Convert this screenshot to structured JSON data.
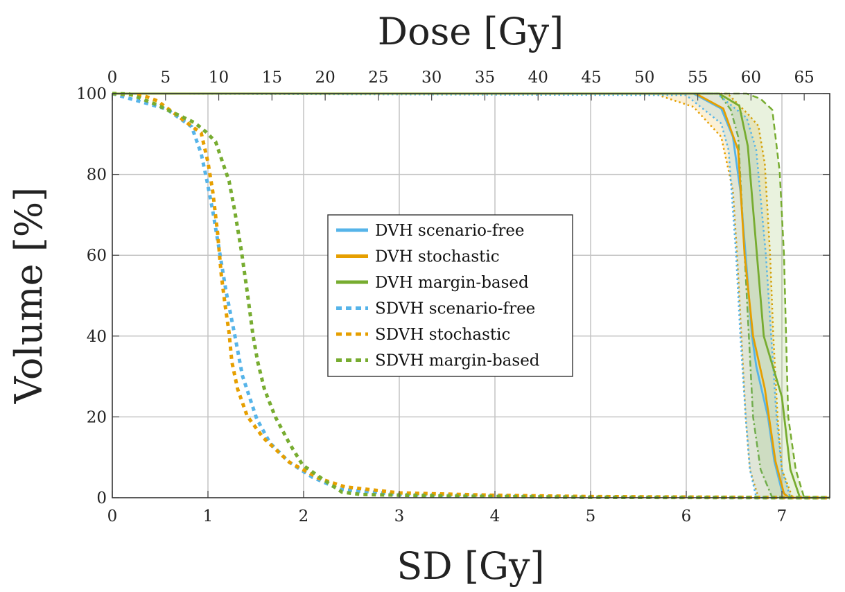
{
  "chart_data": {
    "type": "line",
    "top_axis_label": "Dose [Gy]",
    "xlabel": "SD [Gy]",
    "ylabel": "Volume [%]",
    "xlim": [
      0,
      7.5
    ],
    "top_xlim": [
      0,
      67.4
    ],
    "ylim": [
      0,
      100
    ],
    "x_ticks": [
      "0",
      "1",
      "2",
      "3",
      "4",
      "5",
      "6",
      "7"
    ],
    "top_ticks": [
      "0",
      "5",
      "10",
      "15",
      "20",
      "25",
      "30",
      "35",
      "40",
      "45",
      "50",
      "55",
      "60",
      "65"
    ],
    "y_ticks": [
      "0",
      "20",
      "40",
      "60",
      "80",
      "100"
    ],
    "grid": true,
    "legend_placement": "center",
    "colors": {
      "scenario_free": "#56B4E9",
      "stochastic": "#E69F00",
      "margin_based": "#77AC30"
    },
    "series": [
      {
        "name": "DVH scenario-free",
        "axis": "dose",
        "style": "solid",
        "color": "#56B4E9",
        "points": [
          [
            0,
            100
          ],
          [
            54.6,
            100
          ],
          [
            57.2,
            96.3
          ],
          [
            58.3,
            89.3
          ],
          [
            59.0,
            76
          ],
          [
            59.5,
            60
          ],
          [
            60.1,
            40
          ],
          [
            60.5,
            32.5
          ],
          [
            61.6,
            20
          ],
          [
            62.2,
            9
          ],
          [
            62.9,
            1.7
          ],
          [
            63.5,
            0
          ],
          [
            67.4,
            0
          ]
        ]
      },
      {
        "name": "DVH stochastic",
        "axis": "dose",
        "style": "solid",
        "color": "#E69F00",
        "points": [
          [
            0,
            100
          ],
          [
            54.8,
            100
          ],
          [
            57.4,
            96.3
          ],
          [
            58.8,
            86
          ],
          [
            59.4,
            60
          ],
          [
            60.2,
            40
          ],
          [
            61.3,
            27
          ],
          [
            62.3,
            9
          ],
          [
            63.1,
            1
          ],
          [
            63.6,
            0
          ],
          [
            67.4,
            0
          ]
        ]
      },
      {
        "name": "DVH margin-based",
        "axis": "dose",
        "style": "solid",
        "color": "#77AC30",
        "points": [
          [
            0,
            100
          ],
          [
            57.0,
            100
          ],
          [
            58.9,
            97
          ],
          [
            59.7,
            87
          ],
          [
            61.2,
            40
          ],
          [
            62.9,
            25
          ],
          [
            63.7,
            7
          ],
          [
            64.6,
            0
          ],
          [
            67.4,
            0
          ]
        ]
      },
      {
        "name": "SDVH scenario-free",
        "axis": "sd",
        "style": "dotted",
        "color": "#56B4E9",
        "points": [
          [
            0,
            100
          ],
          [
            0.565,
            96.2
          ],
          [
            0.83,
            91.8
          ],
          [
            0.93,
            85.1
          ],
          [
            0.99,
            78.4
          ],
          [
            1.05,
            71
          ],
          [
            1.12,
            61
          ],
          [
            1.19,
            51
          ],
          [
            1.28,
            40.3
          ],
          [
            1.36,
            30.2
          ],
          [
            1.51,
            19.5
          ],
          [
            1.65,
            13.5
          ],
          [
            1.85,
            8.8
          ],
          [
            2.09,
            5.1
          ],
          [
            2.38,
            2.1
          ],
          [
            3,
            0.8
          ],
          [
            4,
            0.5
          ],
          [
            5,
            0.2
          ],
          [
            6,
            0.1
          ],
          [
            7.5,
            0
          ]
        ]
      },
      {
        "name": "SDVH stochastic",
        "axis": "sd",
        "style": "dotted",
        "color": "#E69F00",
        "points": [
          [
            0,
            100
          ],
          [
            0.33,
            99.5
          ],
          [
            0.47,
            98.2
          ],
          [
            0.93,
            90.2
          ],
          [
            1.0,
            83
          ],
          [
            1.05,
            75.8
          ],
          [
            1.1,
            65.7
          ],
          [
            1.14,
            55
          ],
          [
            1.18,
            47.6
          ],
          [
            1.22,
            40.9
          ],
          [
            1.25,
            33.6
          ],
          [
            1.31,
            26.9
          ],
          [
            1.41,
            20.2
          ],
          [
            1.58,
            14.8
          ],
          [
            1.85,
            8.8
          ],
          [
            2.16,
            4.8
          ],
          [
            2.43,
            2.7
          ],
          [
            3,
            1.2
          ],
          [
            4,
            0.6
          ],
          [
            5,
            0.3
          ],
          [
            6.5,
            0.1
          ],
          [
            7.5,
            0
          ]
        ]
      },
      {
        "name": "SDVH margin-based",
        "axis": "sd",
        "style": "dotted",
        "color": "#77AC30",
        "points": [
          [
            0,
            100
          ],
          [
            0.18,
            99.9
          ],
          [
            0.44,
            97.5
          ],
          [
            0.86,
            92.8
          ],
          [
            0.98,
            90.5
          ],
          [
            1.08,
            88.1
          ],
          [
            1.17,
            81.8
          ],
          [
            1.22,
            78.4
          ],
          [
            1.28,
            71
          ],
          [
            1.35,
            61
          ],
          [
            1.41,
            51
          ],
          [
            1.47,
            40.3
          ],
          [
            1.52,
            33.6
          ],
          [
            1.59,
            26.9
          ],
          [
            1.7,
            20.2
          ],
          [
            1.85,
            13.5
          ],
          [
            1.99,
            8.1
          ],
          [
            2.23,
            4.1
          ],
          [
            2.4,
            1.4
          ],
          [
            2.6,
            0.8
          ],
          [
            3.5,
            0.4
          ],
          [
            5,
            0.1
          ],
          [
            7.5,
            0
          ]
        ]
      }
    ],
    "bands": [
      {
        "color": "#E69F00",
        "axis": "dose",
        "lower": {
          "style": "dotted",
          "points": [
            [
              0,
              100
            ],
            [
              46.8,
              100
            ],
            [
              51.3,
              99.6
            ],
            [
              54.6,
              96.7
            ],
            [
              57.2,
              89.3
            ],
            [
              58.3,
              76
            ],
            [
              58.7,
              60
            ],
            [
              59.1,
              40
            ],
            [
              59.5,
              20
            ],
            [
              59.9,
              7
            ],
            [
              60.7,
              0
            ],
            [
              67.4,
              0
            ]
          ]
        },
        "upper": {
          "style": "dotted",
          "points": [
            [
              0,
              100
            ],
            [
              57.8,
              100
            ],
            [
              59.8,
              94.7
            ],
            [
              60.7,
              92
            ],
            [
              61.3,
              82.6
            ],
            [
              61.8,
              60
            ],
            [
              62.1,
              40
            ],
            [
              62.5,
              20
            ],
            [
              62.9,
              7
            ],
            [
              63.9,
              0
            ],
            [
              67.4,
              0
            ]
          ]
        }
      },
      {
        "color": "#77AC30",
        "axis": "dose",
        "lower": {
          "style": "dashdot",
          "points": [
            [
              0,
              100
            ],
            [
              57.0,
              100
            ],
            [
              58.1,
              96
            ],
            [
              58.8,
              89.3
            ],
            [
              59.4,
              60
            ],
            [
              59.8,
              40
            ],
            [
              60.2,
              20
            ],
            [
              60.9,
              7
            ],
            [
              62.0,
              0
            ],
            [
              67.4,
              0
            ]
          ]
        },
        "upper": {
          "style": "dashed",
          "points": [
            [
              0,
              100
            ],
            [
              59.6,
              100
            ],
            [
              60.9,
              98.7
            ],
            [
              62.0,
              96
            ],
            [
              62.7,
              80.6
            ],
            [
              63.1,
              60
            ],
            [
              63.3,
              40
            ],
            [
              63.5,
              20
            ],
            [
              64.2,
              7
            ],
            [
              65.0,
              0
            ],
            [
              67.4,
              0
            ]
          ]
        }
      },
      {
        "color": "#56B4E9",
        "axis": "dose",
        "lower": {
          "style": "dotted",
          "points": [
            [
              0,
              100
            ],
            [
              53.9,
              99.6
            ],
            [
              57.2,
              92.6
            ],
            [
              57.9,
              86
            ],
            [
              58.6,
              60
            ],
            [
              59.0,
              40
            ],
            [
              59.5,
              20
            ],
            [
              59.9,
              7
            ],
            [
              60.5,
              0
            ],
            [
              67.4,
              0
            ]
          ]
        },
        "upper": {
          "style": "dotted",
          "points": [
            [
              0,
              100
            ],
            [
              56.8,
              100
            ],
            [
              59.6,
              94
            ],
            [
              60.5,
              86
            ],
            [
              61.4,
              60
            ],
            [
              61.9,
              40
            ],
            [
              62.4,
              20
            ],
            [
              62.9,
              7
            ],
            [
              63.7,
              0
            ],
            [
              67.4,
              0
            ]
          ]
        }
      }
    ],
    "legend": [
      {
        "label": "DVH scenario-free",
        "color": "#56B4E9",
        "style": "solid"
      },
      {
        "label": "DVH stochastic",
        "color": "#E69F00",
        "style": "solid"
      },
      {
        "label": "DVH margin-based",
        "color": "#77AC30",
        "style": "solid"
      },
      {
        "label": "SDVH scenario-free",
        "color": "#56B4E9",
        "style": "dotted"
      },
      {
        "label": "SDVH stochastic",
        "color": "#E69F00",
        "style": "dotted"
      },
      {
        "label": "SDVH margin-based",
        "color": "#77AC30",
        "style": "dotted"
      }
    ]
  }
}
